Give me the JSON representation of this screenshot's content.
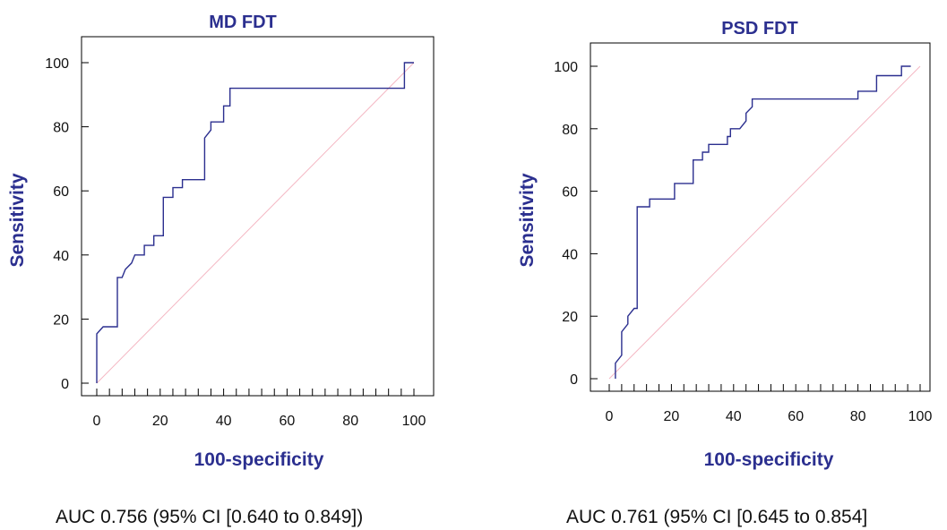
{
  "chart_data": [
    {
      "type": "line",
      "title": "MD FDT",
      "xlabel": "100-specificity",
      "ylabel": "Sensitivity",
      "xlim": [
        0,
        100
      ],
      "ylim": [
        0,
        100
      ],
      "xticks": [
        0,
        20,
        40,
        60,
        80,
        100
      ],
      "yticks": [
        0,
        20,
        40,
        60,
        80,
        100
      ],
      "x_minor_step": 4,
      "series": [
        {
          "color": "#2b2f8f",
          "points": [
            [
              0,
              0
            ],
            [
              0,
              15.4
            ],
            [
              2,
              17.6
            ],
            [
              6.5,
              17.6
            ],
            [
              6.5,
              33
            ],
            [
              8,
              33
            ],
            [
              9,
              35.5
            ],
            [
              11,
              37.5
            ],
            [
              12,
              40
            ],
            [
              15,
              40
            ],
            [
              15,
              43
            ],
            [
              18,
              43
            ],
            [
              18,
              46
            ],
            [
              21,
              46
            ],
            [
              21,
              58
            ],
            [
              24,
              58
            ],
            [
              24,
              61
            ],
            [
              27,
              61
            ],
            [
              27,
              63.5
            ],
            [
              34,
              63.5
            ],
            [
              34,
              76.5
            ],
            [
              36,
              79
            ],
            [
              36,
              81.5
            ],
            [
              40,
              81.5
            ],
            [
              40,
              86.5
            ],
            [
              42,
              86.5
            ],
            [
              42,
              92
            ],
            [
              97,
              92
            ],
            [
              97,
              100
            ],
            [
              100,
              100
            ]
          ]
        }
      ],
      "reference_line": {
        "from": [
          0,
          0
        ],
        "to": [
          100,
          100
        ],
        "color": "#f4b6c2"
      },
      "caption": "AUC 0.756 (95% CI [0.640 to 0.849])"
    },
    {
      "type": "line",
      "title": "PSD FDT",
      "xlabel": "100-specificity",
      "ylabel": "Sensitivity",
      "xlim": [
        0,
        100
      ],
      "ylim": [
        0,
        100
      ],
      "xticks": [
        0,
        20,
        40,
        60,
        80,
        100
      ],
      "yticks": [
        0,
        20,
        40,
        60,
        80,
        100
      ],
      "x_minor_step": 4,
      "series": [
        {
          "color": "#2b2f8f",
          "points": [
            [
              2,
              0
            ],
            [
              2,
              5
            ],
            [
              4,
              7.5
            ],
            [
              4,
              15
            ],
            [
              6,
              17.5
            ],
            [
              6,
              20
            ],
            [
              8,
              22.5
            ],
            [
              9,
              22.5
            ],
            [
              9,
              55
            ],
            [
              13,
              55
            ],
            [
              13,
              57.5
            ],
            [
              21,
              57.5
            ],
            [
              21,
              62.5
            ],
            [
              27,
              62.5
            ],
            [
              27,
              70
            ],
            [
              30,
              70
            ],
            [
              30,
              72.5
            ],
            [
              32,
              72.5
            ],
            [
              32,
              75
            ],
            [
              38,
              75
            ],
            [
              38,
              77.5
            ],
            [
              39,
              77.5
            ],
            [
              39,
              80
            ],
            [
              42,
              80
            ],
            [
              44,
              82.5
            ],
            [
              44,
              85
            ],
            [
              46,
              87
            ],
            [
              46,
              89.5
            ],
            [
              80,
              89.5
            ],
            [
              80,
              92
            ],
            [
              86,
              92
            ],
            [
              86,
              97
            ],
            [
              94,
              97
            ],
            [
              94,
              100
            ],
            [
              97,
              100
            ]
          ]
        }
      ],
      "reference_line": {
        "from": [
          0,
          0
        ],
        "to": [
          100,
          100
        ],
        "color": "#f4b6c2"
      },
      "caption": "AUC 0.761 (95% CI [0.645 to 0.854]"
    }
  ]
}
